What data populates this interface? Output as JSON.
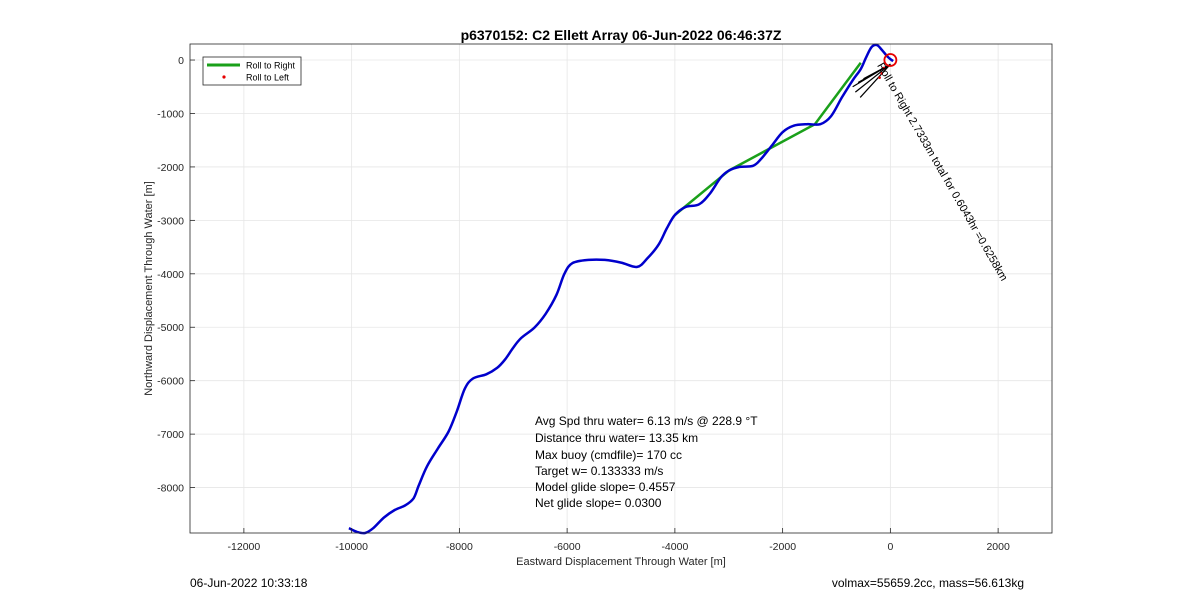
{
  "chart_data": {
    "type": "line",
    "title": "p6370152: C2 Ellett Array 06-Jun-2022 06:46:37Z",
    "xlabel": "Eastward Displacement Through Water [m]",
    "ylabel": "Northward Displacement Through Water [m]",
    "xlim": [
      -13000,
      3000
    ],
    "ylim": [
      -8850,
      300
    ],
    "grid": true,
    "xticks": [
      -12000,
      -10000,
      -8000,
      -6000,
      -4000,
      -2000,
      0,
      2000
    ],
    "xtick_labels": [
      "-12000",
      "-10000",
      "-8000",
      "-6000",
      "-4000",
      "-2000",
      "0",
      "2000"
    ],
    "yticks": [
      0,
      -1000,
      -2000,
      -3000,
      -4000,
      -5000,
      -6000,
      -7000,
      -8000
    ],
    "ytick_labels": [
      "0",
      "-1000",
      "-2000",
      "-3000",
      "-4000",
      "-5000",
      "-6000",
      "-7000",
      "-8000"
    ],
    "legend": {
      "location": "top-left",
      "entries": [
        {
          "label": "Roll to Right",
          "color": "#1aa01a",
          "style": "line"
        },
        {
          "label": "Roll to Left",
          "color": "#e60000",
          "style": "dot"
        }
      ]
    },
    "track": {
      "color": "#0000cc",
      "points": [
        [
          -10050,
          -8760
        ],
        [
          -9900,
          -8830
        ],
        [
          -9750,
          -8850
        ],
        [
          -9600,
          -8760
        ],
        [
          -9400,
          -8560
        ],
        [
          -9200,
          -8420
        ],
        [
          -9000,
          -8330
        ],
        [
          -8850,
          -8200
        ],
        [
          -8750,
          -7950
        ],
        [
          -8600,
          -7600
        ],
        [
          -8400,
          -7270
        ],
        [
          -8200,
          -6950
        ],
        [
          -8050,
          -6580
        ],
        [
          -7900,
          -6150
        ],
        [
          -7750,
          -5960
        ],
        [
          -7500,
          -5880
        ],
        [
          -7300,
          -5760
        ],
        [
          -7150,
          -5600
        ],
        [
          -7000,
          -5380
        ],
        [
          -6850,
          -5200
        ],
        [
          -6600,
          -5000
        ],
        [
          -6400,
          -4750
        ],
        [
          -6200,
          -4400
        ],
        [
          -6050,
          -4000
        ],
        [
          -5900,
          -3800
        ],
        [
          -5600,
          -3740
        ],
        [
          -5300,
          -3740
        ],
        [
          -5000,
          -3790
        ],
        [
          -4700,
          -3870
        ],
        [
          -4500,
          -3700
        ],
        [
          -4300,
          -3450
        ],
        [
          -4150,
          -3150
        ],
        [
          -4000,
          -2900
        ],
        [
          -3800,
          -2750
        ],
        [
          -3550,
          -2700
        ],
        [
          -3350,
          -2500
        ],
        [
          -3150,
          -2200
        ],
        [
          -3000,
          -2070
        ],
        [
          -2800,
          -2000
        ],
        [
          -2550,
          -1980
        ],
        [
          -2400,
          -1850
        ],
        [
          -2200,
          -1600
        ],
        [
          -2000,
          -1350
        ],
        [
          -1800,
          -1230
        ],
        [
          -1550,
          -1200
        ],
        [
          -1300,
          -1200
        ],
        [
          -1100,
          -1050
        ],
        [
          -900,
          -700
        ],
        [
          -700,
          -380
        ],
        [
          -550,
          -170
        ],
        [
          -450,
          50
        ],
        [
          -350,
          240
        ],
        [
          -250,
          280
        ],
        [
          -150,
          180
        ],
        [
          -50,
          60
        ],
        [
          50,
          -20
        ]
      ]
    },
    "roll_right_segments": [
      [
        [
          -4000,
          -2900
        ],
        [
          -3000,
          -2070
        ]
      ],
      [
        [
          -3000,
          -2070
        ],
        [
          -1400,
          -1200
        ]
      ],
      [
        [
          -1400,
          -1200
        ],
        [
          -550,
          -50
        ]
      ]
    ],
    "annotation": {
      "text": "Roll to Right",
      "detail": "2.7333m total for 0.6043hr =0.6258km",
      "x": -250,
      "y": -100,
      "rotation_deg": 60
    },
    "surface_vectors": {
      "color": "#000000",
      "origin": [
        0,
        -80
      ],
      "ends": [
        [
          -500,
          -350
        ],
        [
          -600,
          -420
        ],
        [
          -700,
          -500
        ],
        [
          -650,
          -600
        ],
        [
          -560,
          -700
        ]
      ]
    },
    "start_marker": {
      "x": 0,
      "y": 0,
      "color": "#e60000",
      "shape": "circle"
    },
    "stats": [
      "Avg Spd thru water=  6.13 m/s @ 228.9 °T",
      "Distance thru water= 13.35 km",
      "Max buoy (cmdfile)= 170 cc",
      "Target w= 0.133333 m/s",
      "Model glide slope= 0.4557",
      "Net glide slope= 0.0300"
    ]
  },
  "footer": {
    "timestamp": "06-Jun-2022 10:33:18",
    "volume_mass": "volmax=55659.2cc, mass=56.613kg"
  },
  "colors": {
    "track": "#0000cc",
    "roll_right": "#1aa01a",
    "roll_left": "#e60000",
    "grid": "#e6e6e6",
    "axes": "#262626"
  }
}
